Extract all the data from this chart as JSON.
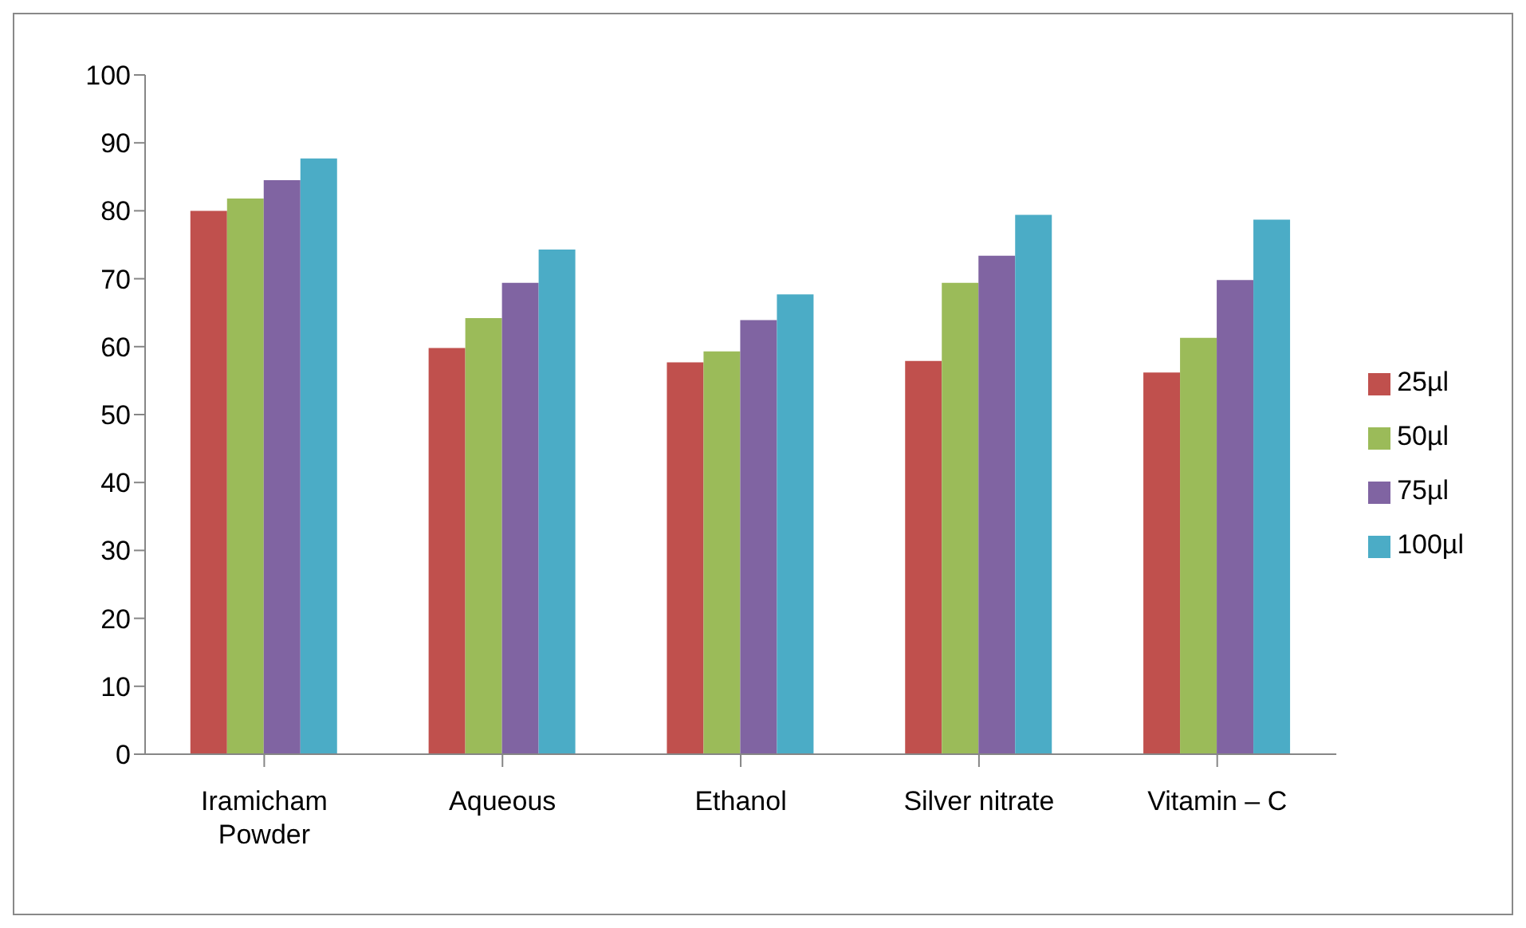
{
  "chart_data": {
    "type": "bar",
    "categories": [
      "Iramicham Powder",
      "Aqueous",
      "Ethanol",
      "Silver nitrate",
      "Vitamin – C"
    ],
    "series": [
      {
        "name": "25µl",
        "color": "#c0504d",
        "values": [
          80,
          59.8,
          57.7,
          57.9,
          56.2
        ]
      },
      {
        "name": "50µl",
        "color": "#9bbb59",
        "values": [
          81.8,
          64.2,
          59.3,
          69.4,
          61.3
        ]
      },
      {
        "name": "75µl",
        "color": "#8064a2",
        "values": [
          84.5,
          69.4,
          63.9,
          73.4,
          69.8
        ]
      },
      {
        "name": "100µl",
        "color": "#4bacc6",
        "values": [
          87.7,
          74.3,
          67.7,
          79.4,
          78.7
        ]
      }
    ],
    "ylim": [
      0,
      100
    ],
    "yticks": [
      0,
      10,
      20,
      30,
      40,
      50,
      60,
      70,
      80,
      90,
      100
    ],
    "grid": false,
    "legend": "right"
  }
}
